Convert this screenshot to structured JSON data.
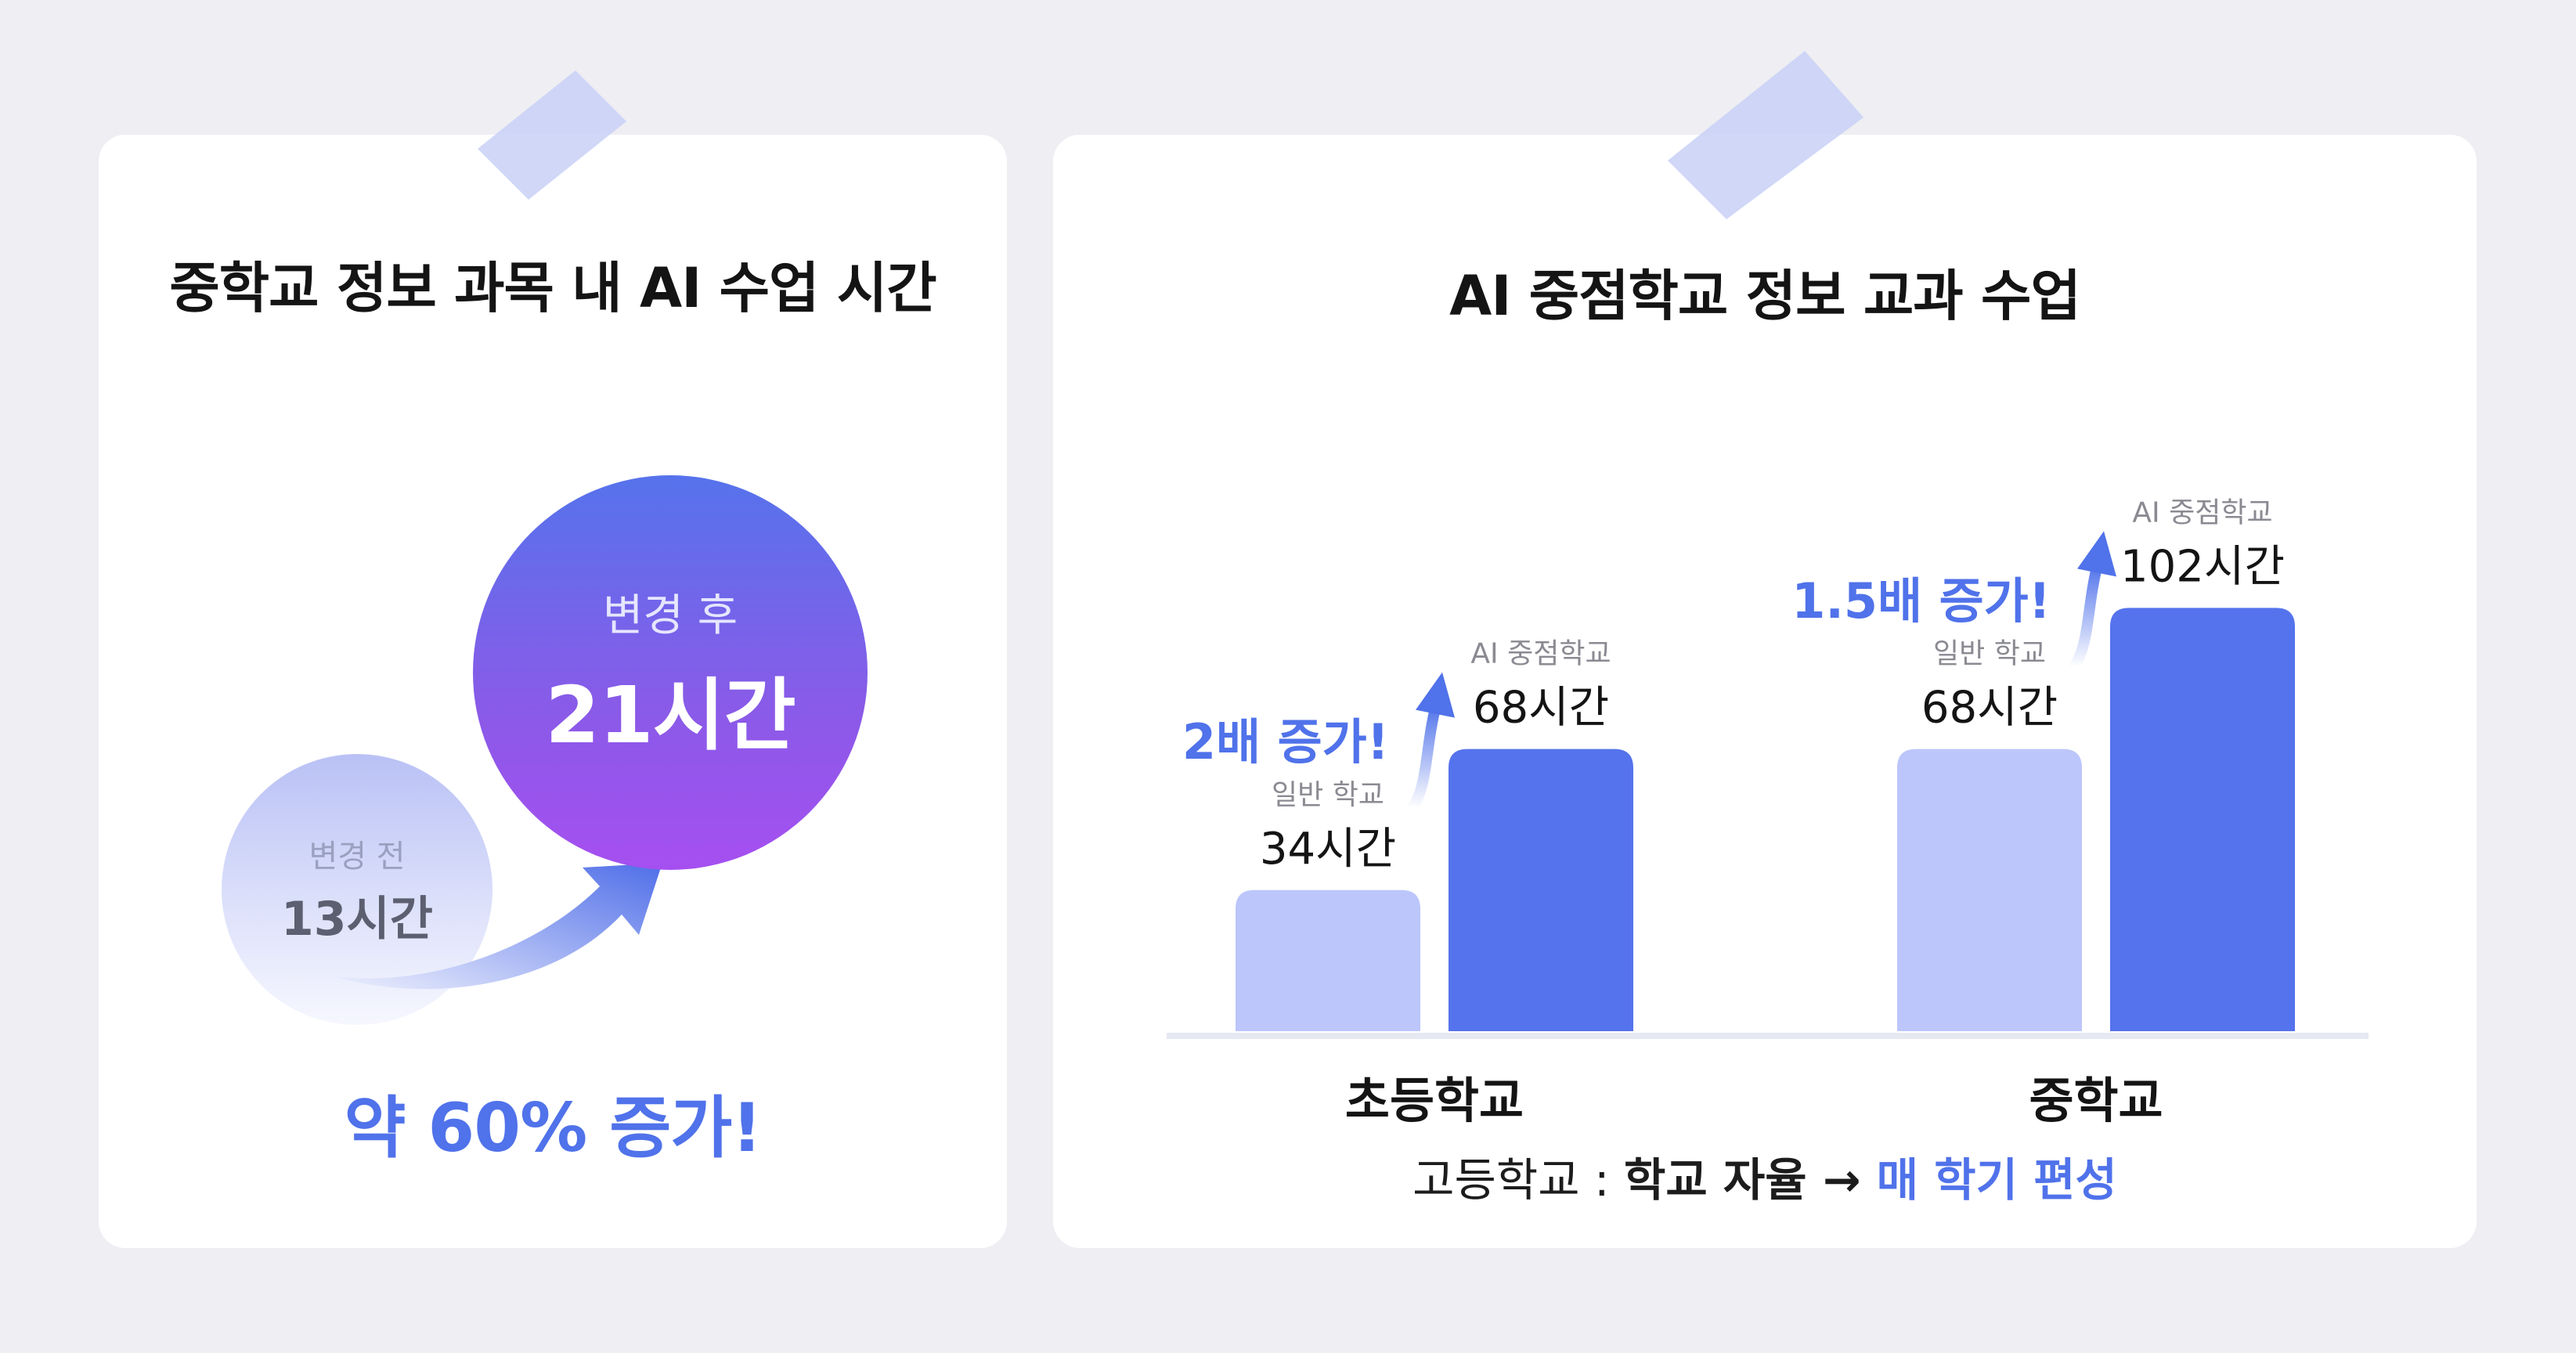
{
  "left_card": {
    "title": "중학교 정보 과목 내 AI 수업 시간",
    "before": {
      "caption": "변경 전",
      "value": "13시간"
    },
    "after": {
      "caption": "변경 후",
      "value": "21시간"
    },
    "increase": "약 60% 증가!"
  },
  "right_card": {
    "title": "AI 중점학교 정보 교과 수업",
    "footnote": {
      "prefix": "고등학교 : ",
      "middle": "학교 자율",
      "arrow": "→",
      "emphasis": "매 학기 편성"
    }
  },
  "colors": {
    "general_bar": "#bcc6fb",
    "ai_bar": "#5573ec",
    "accent": "#5072ea"
  },
  "chart_data": {
    "type": "bar",
    "title": "AI 중점학교 정보 교과 수업",
    "categories": [
      "초등학교",
      "중학교"
    ],
    "series": [
      {
        "name": "일반 학교",
        "values": [
          34,
          68
        ],
        "labels": [
          "34시간",
          "68시간"
        ]
      },
      {
        "name": "AI 중점학교",
        "values": [
          68,
          102
        ],
        "labels": [
          "68시간",
          "102시간"
        ]
      }
    ],
    "annotations": [
      "2배 증가!",
      "1.5배 증가!"
    ],
    "ylim": [
      0,
      102
    ],
    "grid": false
  }
}
